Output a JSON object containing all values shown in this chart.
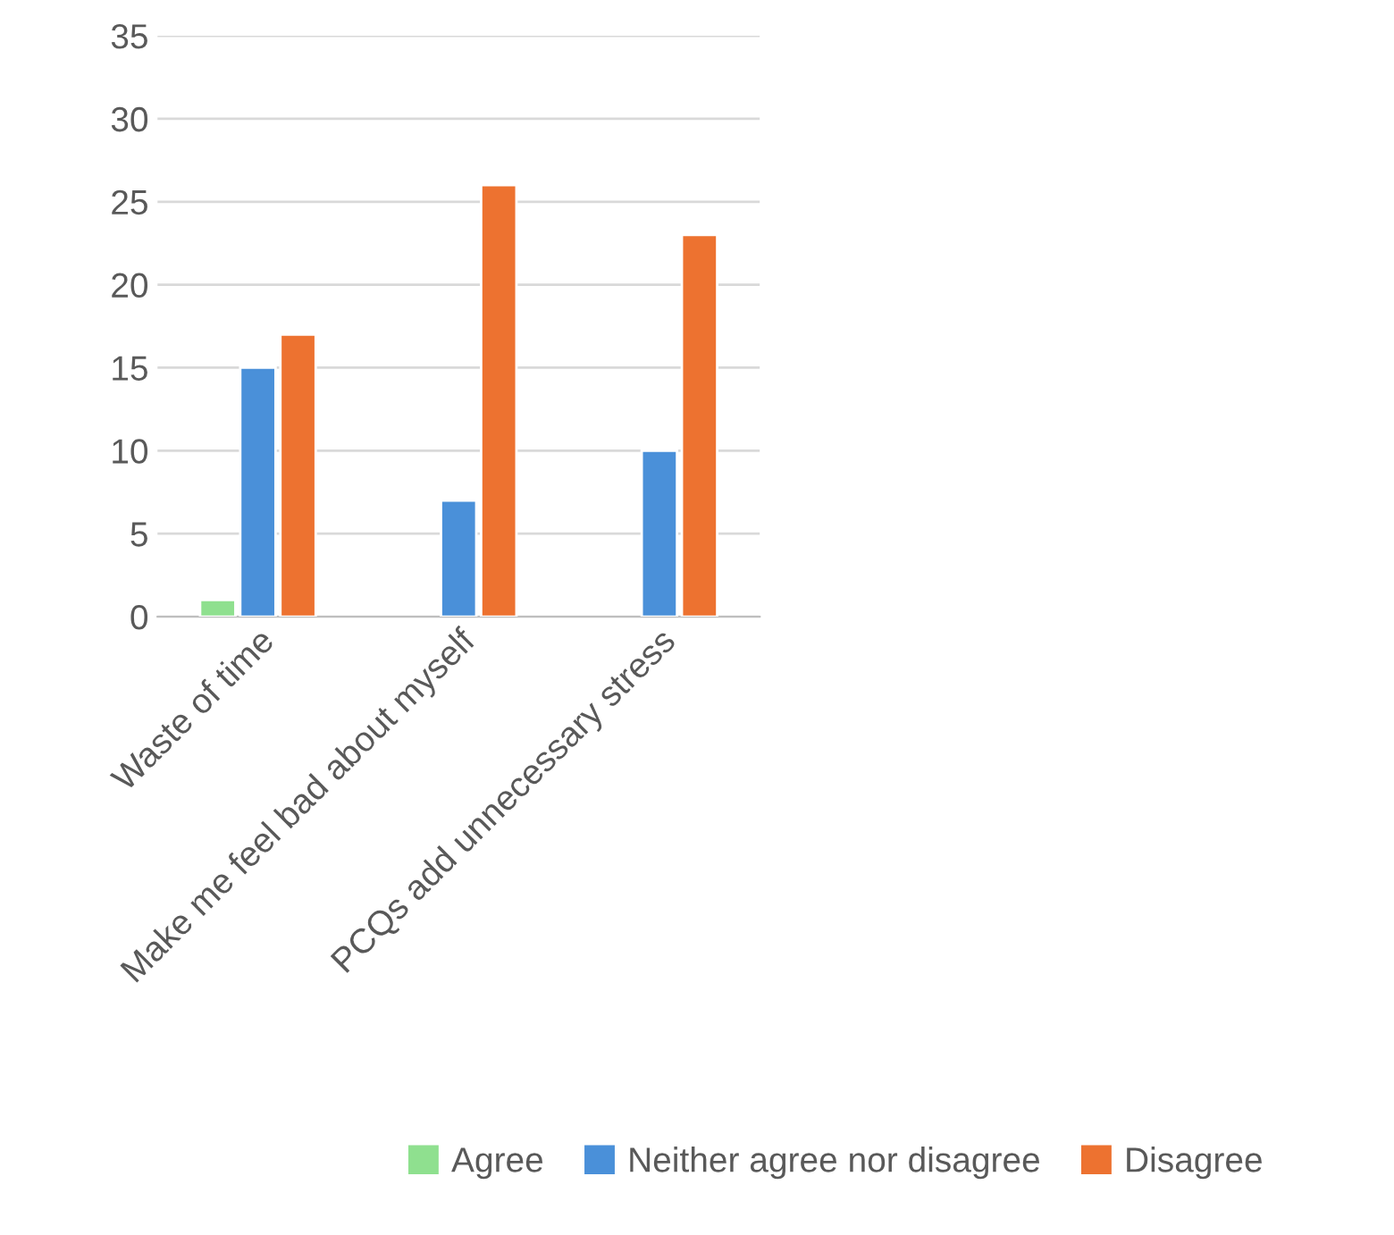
{
  "chart_data": {
    "type": "bar",
    "categories": [
      "Waste of time",
      "Make me feel bad about myself",
      "PCQs add unnecessary stress"
    ],
    "series": [
      {
        "name": "Agree",
        "color": "#8fe08f",
        "values": [
          1,
          null,
          null
        ]
      },
      {
        "name": "Neither agree nor disagree",
        "color": "#4a90d9",
        "values": [
          15,
          7,
          10
        ]
      },
      {
        "name": "Disagree",
        "color": "#ed7230",
        "values": [
          17,
          26,
          23
        ]
      }
    ],
    "ylim": [
      0,
      35
    ],
    "yticks": [
      0,
      5,
      10,
      15,
      20,
      25,
      30,
      35
    ],
    "grid": "y",
    "legend": "bottom"
  }
}
